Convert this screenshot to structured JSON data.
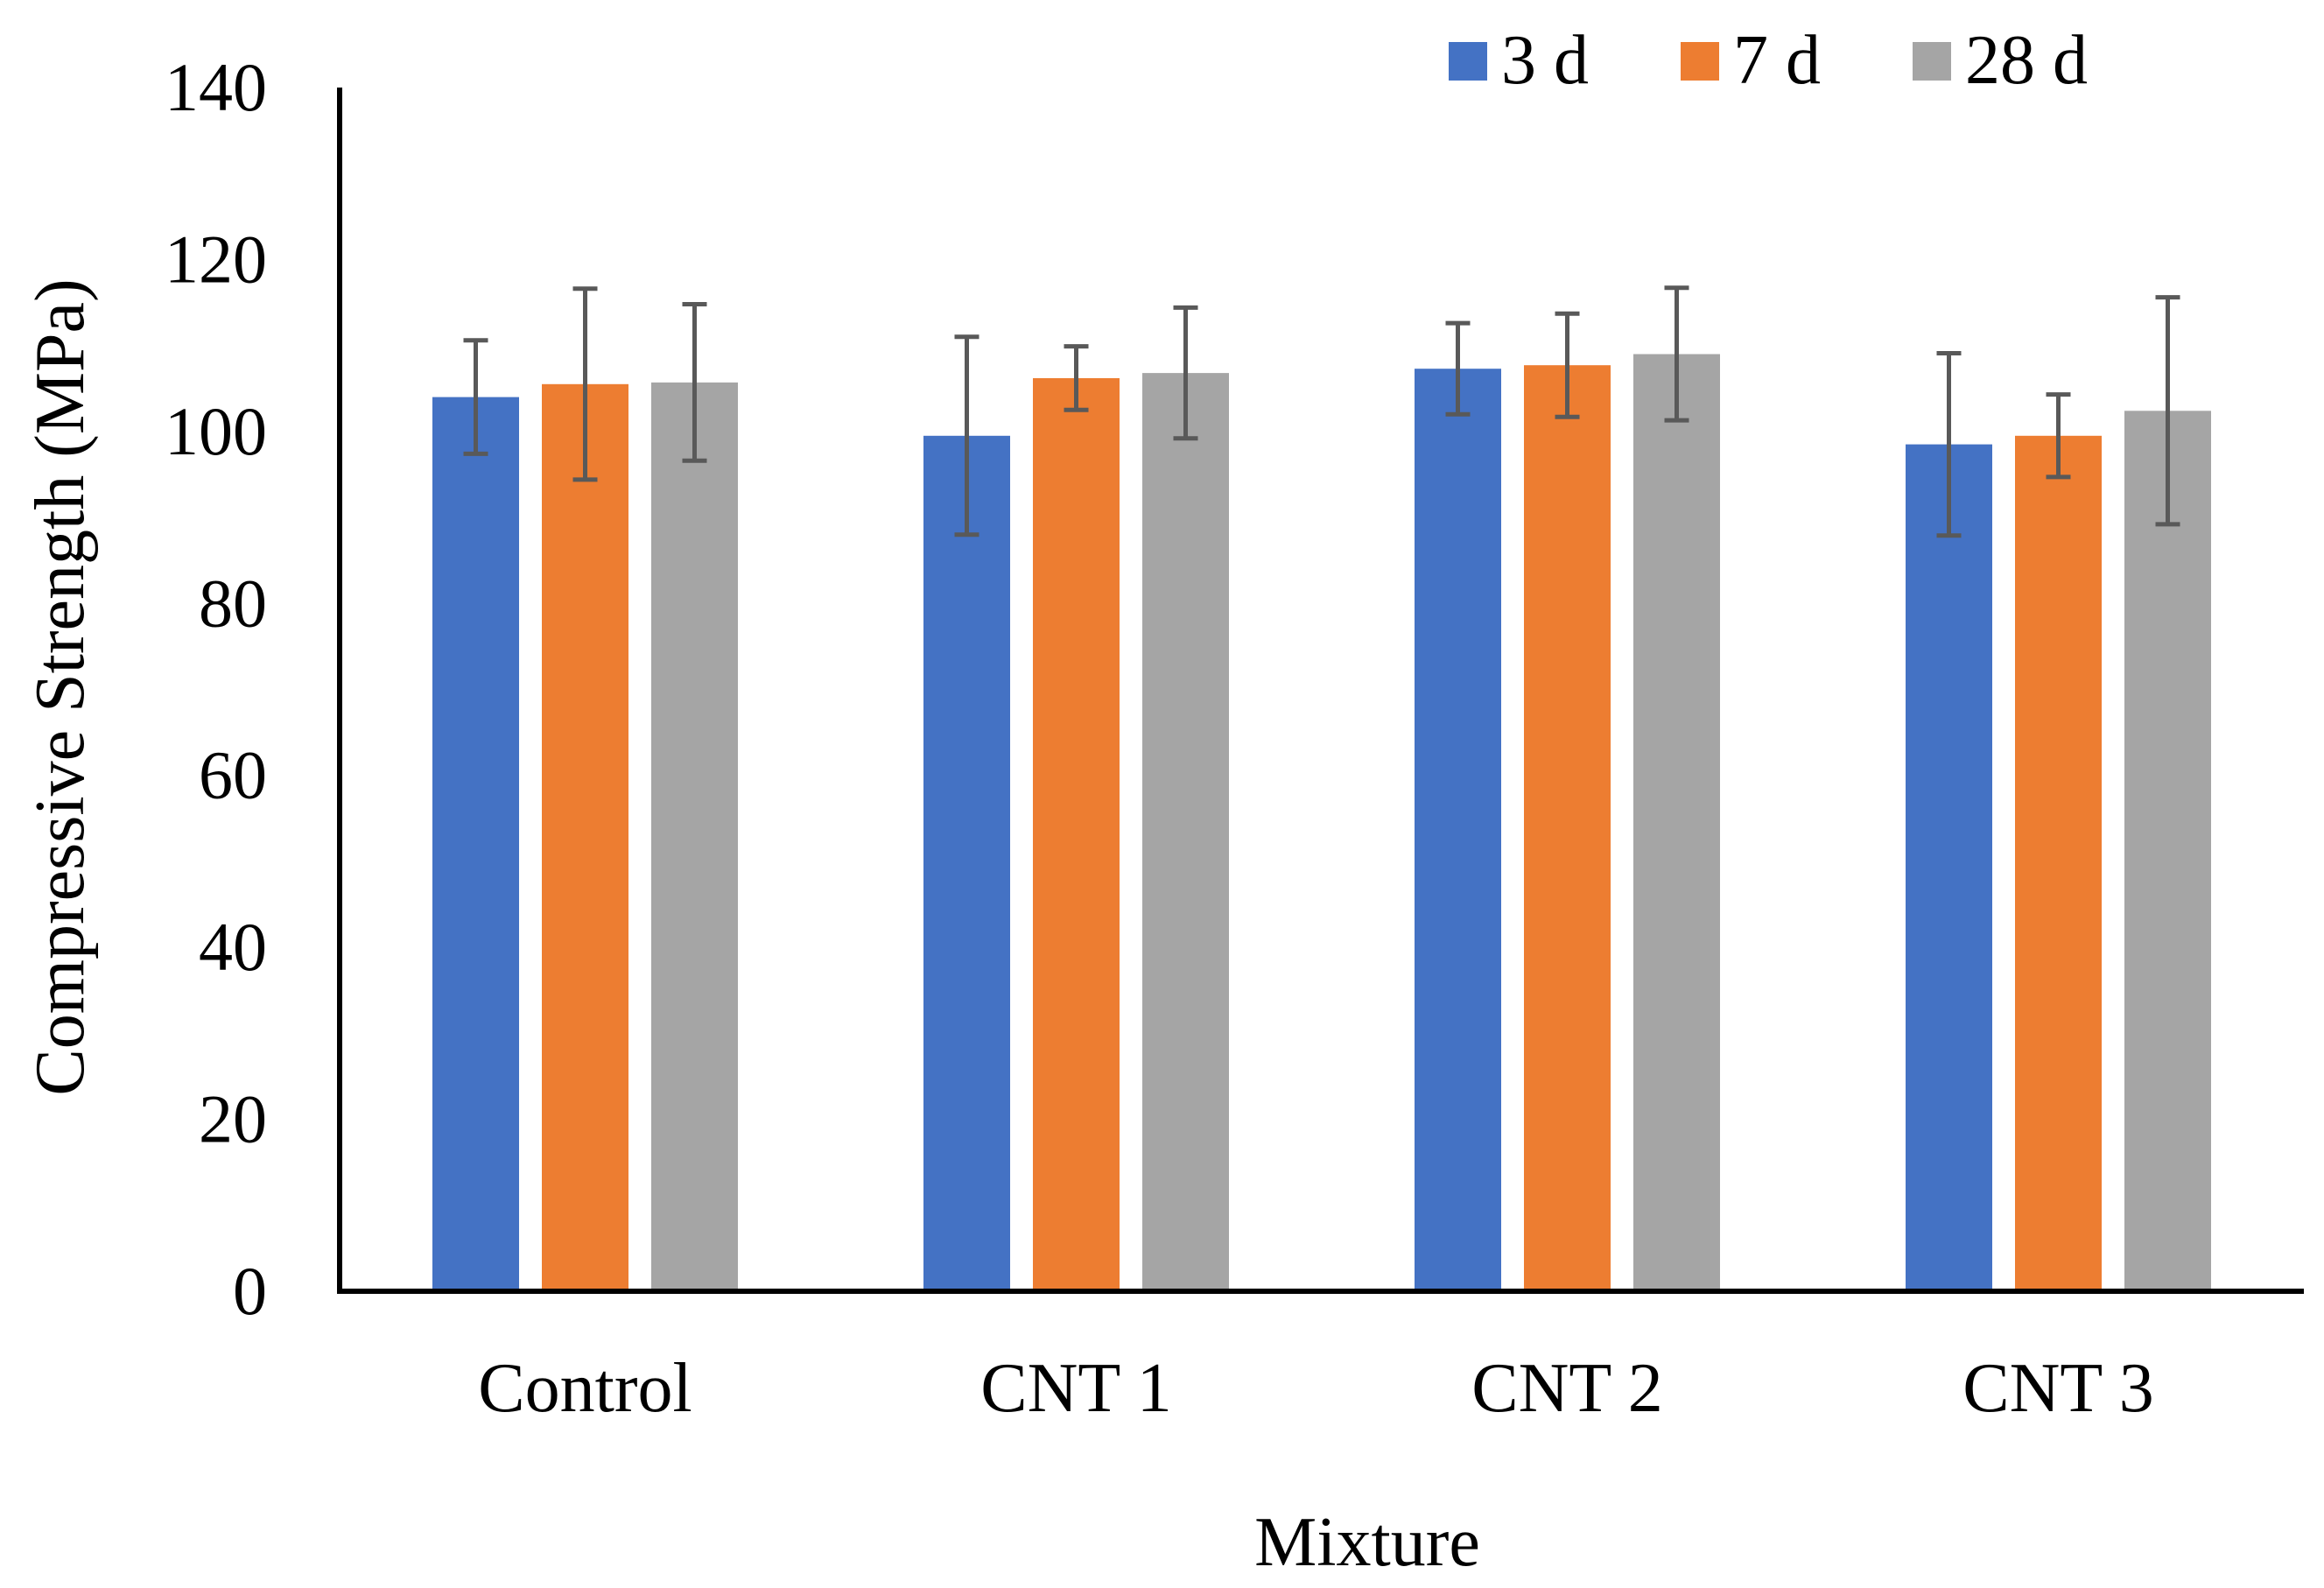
{
  "chart_data": {
    "type": "bar",
    "title": "",
    "xlabel": "Mixture",
    "ylabel": "Compressive Strength (MPa)",
    "ylim": [
      0,
      140
    ],
    "yticks": [
      0,
      20,
      40,
      60,
      80,
      100,
      120,
      140
    ],
    "ytick_labels": [
      "0",
      "20",
      "40",
      "60",
      "80",
      "100",
      "120",
      "140"
    ],
    "categories": [
      "Control",
      "CNT 1",
      "CNT 2",
      "CNT 3"
    ],
    "grid": false,
    "legend_position": "top-right",
    "series": [
      {
        "name": "3 d",
        "color": "#4472C4",
        "values": [
          104,
          99.5,
          107.3,
          98.5
        ],
        "errors": [
          6.6,
          11.5,
          5.3,
          10.6
        ]
      },
      {
        "name": "7 d",
        "color": "#ED7D31",
        "values": [
          105.5,
          106.2,
          107.7,
          99.5
        ],
        "errors": [
          11.1,
          3.7,
          6.0,
          4.8
        ]
      },
      {
        "name": "28 d",
        "color": "#A5A5A5",
        "values": [
          105.7,
          106.8,
          109,
          102.4
        ],
        "errors": [
          9.1,
          7.6,
          7.7,
          13.2
        ]
      }
    ],
    "error_bar_color": "#595959"
  }
}
